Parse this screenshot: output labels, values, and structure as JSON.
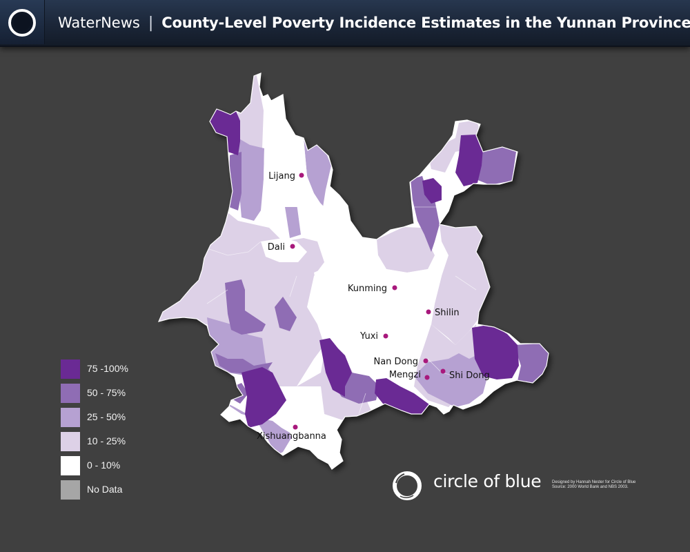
{
  "header": {
    "brand": "WaterNews",
    "separator": "|",
    "title": "County-Level  Poverty  Incidence Estimates in the Yunnan Province",
    "logo_icon": "ring-logo-icon"
  },
  "colors": {
    "background": "#404040",
    "header": "#1b2638",
    "class_75_100": "#6a2a94",
    "class_50_75": "#8f6db4",
    "class_25_50": "#b6a1d2",
    "class_10_25": "#ddd1e7",
    "class_0_10": "#ffffff",
    "no_data": "#a6a6a6",
    "city_marker": "#a8187c"
  },
  "cities": [
    {
      "name": "Lijang"
    },
    {
      "name": "Dali"
    },
    {
      "name": "Kunming"
    },
    {
      "name": "Shilin"
    },
    {
      "name": "Yuxi"
    },
    {
      "name": "Nan Dong"
    },
    {
      "name": "Mengzi"
    },
    {
      "name": "Shi Dong"
    },
    {
      "name": "Xishuangbanna"
    }
  ],
  "legend": [
    {
      "label": "75 -100%",
      "color": "#6a2a94"
    },
    {
      "label": "50 - 75%",
      "color": "#8f6db4"
    },
    {
      "label": "25 - 50%",
      "color": "#b6a1d2"
    },
    {
      "label": "10 - 25%",
      "color": "#ddd1e7"
    },
    {
      "label": "0 - 10%",
      "color": "#ffffff"
    },
    {
      "label": "No Data",
      "color": "#a6a6a6"
    }
  ],
  "footer": {
    "logo_icon": "circle-of-blue-icon",
    "brand": "circle of blue",
    "credit_line_1": "Designed by Hannah Nester for Circle of Blue",
    "credit_line_2": "Source: 2000 World Bank and NBS 2003."
  }
}
